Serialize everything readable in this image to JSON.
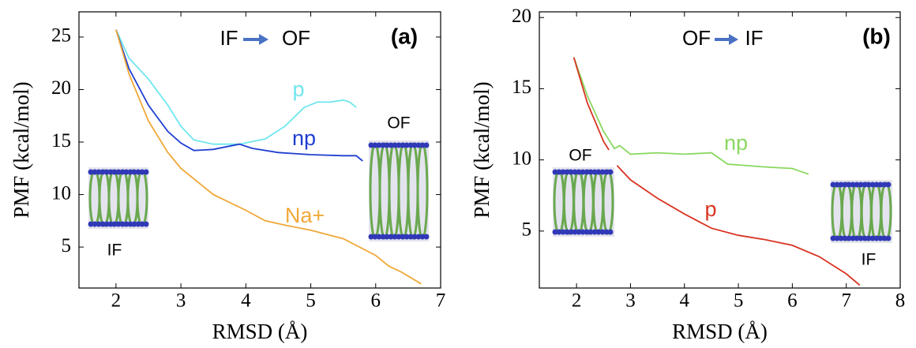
{
  "chart_data": [
    {
      "type": "line",
      "title_from": "IF",
      "title_to": "OF",
      "panel_label": "(a)",
      "xlabel": "RMSD (Å)",
      "ylabel": "PMF (kcal/mol)",
      "xlim": [
        1.43,
        7
      ],
      "ylim": [
        1.1,
        27.4
      ],
      "xticks": [
        2,
        3,
        4,
        5,
        6,
        7
      ],
      "yticks": [
        5,
        10,
        15,
        20,
        25
      ],
      "annotations": [
        "OF",
        "IF"
      ],
      "series": [
        {
          "name": "p",
          "color": "#6fe6ee",
          "x": [
            2,
            2.2,
            2.5,
            2.8,
            3.0,
            3.2,
            3.5,
            3.9,
            4.3,
            4.6,
            4.9,
            5.1,
            5.3,
            5.5,
            5.6,
            5.7
          ],
          "values": [
            25.7,
            23,
            21,
            18.5,
            16.5,
            15.2,
            14.8,
            14.8,
            15.3,
            16.5,
            18.3,
            18.8,
            18.8,
            19,
            18.8,
            18.3
          ]
        },
        {
          "name": "np",
          "color": "#1f3fd0",
          "x": [
            2,
            2.2,
            2.5,
            2.8,
            3.0,
            3.2,
            3.5,
            3.9,
            4.1,
            4.5,
            5,
            5.5,
            5.7,
            5.8
          ],
          "values": [
            25.7,
            22,
            18.5,
            16,
            14.9,
            14.2,
            14.3,
            14.8,
            14.4,
            14.0,
            13.8,
            13.7,
            13.7,
            13.2
          ]
        },
        {
          "name": "Na+",
          "color": "#f0a838",
          "x": [
            2,
            2.2,
            2.5,
            2.8,
            3.0,
            3.5,
            4,
            4.3,
            4.6,
            5,
            5.5,
            6,
            6.2,
            6.4,
            6.7
          ],
          "values": [
            25.7,
            21.5,
            17,
            14,
            12.5,
            10,
            8.5,
            7.5,
            7.1,
            6.6,
            5.8,
            4.2,
            3.2,
            2.6,
            1.5
          ]
        }
      ]
    },
    {
      "type": "line",
      "title_from": "OF",
      "title_to": "IF",
      "panel_label": "(b)",
      "xlabel": "RMSD (Å)",
      "ylabel": "PMF (kcal/mol)",
      "xlim": [
        1.31,
        8
      ],
      "ylim": [
        1.0,
        20.4
      ],
      "xticks": [
        2,
        3,
        4,
        5,
        6,
        7,
        8
      ],
      "yticks": [
        5,
        10,
        15,
        20
      ],
      "annotations": [
        "OF",
        "IF"
      ],
      "series": [
        {
          "name": "np",
          "color": "#8ad860",
          "x": [
            1.95,
            2.2,
            2.5,
            2.7,
            2.8,
            3,
            3.5,
            4,
            4.5,
            4.8,
            5.5,
            6,
            6.3
          ],
          "values": [
            17.2,
            14.5,
            12,
            10.8,
            11,
            10.4,
            10.5,
            10.4,
            10.5,
            9.7,
            9.5,
            9.4,
            9.0
          ]
        },
        {
          "name": "p",
          "color": "#d83422",
          "x": [
            1.95,
            2.2,
            2.5,
            2.6,
            2.68,
            2.75,
            3,
            3.5,
            4,
            4.5,
            5,
            5.5,
            6,
            6.5,
            7,
            7.25
          ],
          "values": [
            17.2,
            14,
            11.3,
            10.7,
            null,
            9.6,
            8.6,
            7.3,
            6.2,
            5.2,
            4.7,
            4.4,
            4.0,
            3.2,
            2.0,
            1.2
          ]
        }
      ]
    }
  ]
}
